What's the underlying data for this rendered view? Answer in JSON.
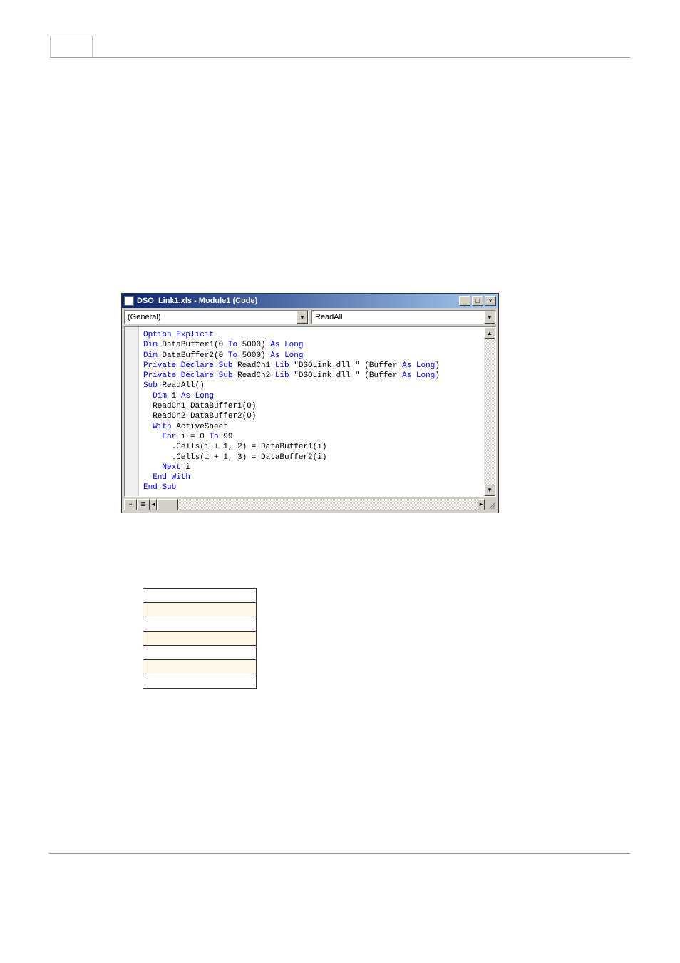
{
  "page": {
    "tab_label": "",
    "tab_content": ""
  },
  "window": {
    "title": "DSO_Link1.xls - Module1 (Code)",
    "dropdown_left": "(General)",
    "dropdown_right": "ReadAll"
  },
  "code": {
    "lines": [
      {
        "indent": 0,
        "parts": [
          {
            "text": "Option Explicit",
            "cls": "kw-blue"
          }
        ]
      },
      {
        "indent": 0,
        "parts": [
          {
            "text": "Dim",
            "cls": "kw-blue"
          },
          {
            "text": " DataBuffer1(0 ",
            "cls": ""
          },
          {
            "text": "To",
            "cls": "kw-blue"
          },
          {
            "text": " 5000) ",
            "cls": ""
          },
          {
            "text": "As Long",
            "cls": "kw-blue"
          }
        ]
      },
      {
        "indent": 0,
        "parts": [
          {
            "text": "Dim",
            "cls": "kw-blue"
          },
          {
            "text": " DataBuffer2(0 ",
            "cls": ""
          },
          {
            "text": "To",
            "cls": "kw-blue"
          },
          {
            "text": " 5000) ",
            "cls": ""
          },
          {
            "text": "As Long",
            "cls": "kw-blue"
          }
        ]
      },
      {
        "indent": 0,
        "parts": [
          {
            "text": "Private Declare Sub",
            "cls": "kw-blue"
          },
          {
            "text": " ReadCh1 ",
            "cls": ""
          },
          {
            "text": "Lib",
            "cls": "kw-blue"
          },
          {
            "text": " \"DSOLink.dll \" (Buffer ",
            "cls": ""
          },
          {
            "text": "As Long",
            "cls": "kw-blue"
          },
          {
            "text": ")",
            "cls": ""
          }
        ]
      },
      {
        "indent": 0,
        "parts": [
          {
            "text": "Private Declare Sub",
            "cls": "kw-blue"
          },
          {
            "text": " ReadCh2 ",
            "cls": ""
          },
          {
            "text": "Lib",
            "cls": "kw-blue"
          },
          {
            "text": " \"DSOLink.dll \" (Buffer ",
            "cls": ""
          },
          {
            "text": "As Long",
            "cls": "kw-blue"
          },
          {
            "text": ")",
            "cls": ""
          }
        ]
      },
      {
        "indent": 0,
        "parts": [
          {
            "text": "",
            "cls": ""
          }
        ]
      },
      {
        "indent": 0,
        "parts": [
          {
            "text": "Sub",
            "cls": "kw-blue"
          },
          {
            "text": " ReadAll()",
            "cls": ""
          }
        ]
      },
      {
        "indent": 1,
        "parts": [
          {
            "text": "Dim",
            "cls": "kw-blue"
          },
          {
            "text": " i ",
            "cls": ""
          },
          {
            "text": "As Long",
            "cls": "kw-blue"
          }
        ]
      },
      {
        "indent": 1,
        "parts": [
          {
            "text": "ReadCh1 DataBuffer1(0)",
            "cls": ""
          }
        ]
      },
      {
        "indent": 1,
        "parts": [
          {
            "text": "ReadCh2 DataBuffer2(0)",
            "cls": ""
          }
        ]
      },
      {
        "indent": 1,
        "parts": [
          {
            "text": "With",
            "cls": "kw-blue"
          },
          {
            "text": " ActiveSheet",
            "cls": ""
          }
        ]
      },
      {
        "indent": 2,
        "parts": [
          {
            "text": "For",
            "cls": "kw-blue"
          },
          {
            "text": " i = 0 ",
            "cls": ""
          },
          {
            "text": "To",
            "cls": "kw-blue"
          },
          {
            "text": " 99",
            "cls": ""
          }
        ]
      },
      {
        "indent": 3,
        "parts": [
          {
            "text": ".Cells(i + 1, 2) = DataBuffer1(i)",
            "cls": ""
          }
        ]
      },
      {
        "indent": 3,
        "parts": [
          {
            "text": ".Cells(i + 1, 3) = DataBuffer2(i)",
            "cls": ""
          }
        ]
      },
      {
        "indent": 2,
        "parts": [
          {
            "text": "Next",
            "cls": "kw-blue"
          },
          {
            "text": " i",
            "cls": ""
          }
        ]
      },
      {
        "indent": 1,
        "parts": [
          {
            "text": "End With",
            "cls": "kw-blue"
          }
        ]
      },
      {
        "indent": 0,
        "parts": [
          {
            "text": "End Sub",
            "cls": "kw-blue"
          }
        ]
      }
    ]
  },
  "table": {
    "rows": [
      [
        ""
      ],
      [
        ""
      ],
      [
        ""
      ],
      [
        ""
      ],
      [
        ""
      ],
      [
        ""
      ],
      [
        ""
      ]
    ]
  },
  "bullets": [
    "",
    "",
    ""
  ],
  "paragraphs": {
    "p1": "",
    "p2": "",
    "p3": "",
    "p4": "",
    "p5": ""
  },
  "footer": {
    "left": "",
    "right": ""
  },
  "icons": {
    "minimize": "_",
    "maximize": "□",
    "close": "×",
    "down_arrow": "▼",
    "up_arrow": "▲",
    "left_arrow": "◄",
    "right_arrow": "►",
    "view1": "≡",
    "view2": "☰"
  }
}
